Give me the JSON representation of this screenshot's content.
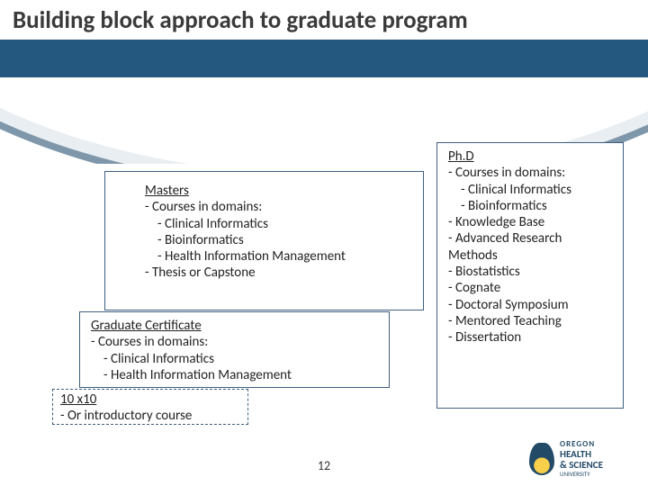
{
  "title": "Building block approach to graduate program",
  "colors": {
    "band": "#25587f",
    "arc_mid": "#e9eef2",
    "arc_outer": "#7f97aa",
    "box_border": "#3f5f7f",
    "text": "#3a3a3a"
  },
  "page_number": "12",
  "boxes": {
    "phd": {
      "title": "Ph.D",
      "lines": [
        "- Courses in domains:",
        "   - Clinical Informatics",
        "   - Bioinformatics",
        "- Knowledge Base",
        "- Advanced Research",
        "  Methods",
        "- Biostatistics",
        "- Cognate",
        "- Doctoral Symposium",
        "- Mentored Teaching",
        "- Dissertation"
      ]
    },
    "masters": {
      "title": "Masters",
      "lines": [
        "- Courses in domains:",
        "   - Clinical Informatics",
        "   - Bioinformatics",
        "   - Health Information Management",
        "- Thesis or Capstone"
      ]
    },
    "grad_cert": {
      "title": "Graduate Certificate",
      "lines": [
        "- Courses in domains:",
        "   - Clinical Informatics",
        "   - Health Information Management"
      ]
    },
    "tenbyten": {
      "title": "10 x10",
      "lines": [
        "- Or introductory course"
      ]
    }
  },
  "logo": {
    "line1": "OREGON",
    "line2": "HEALTH",
    "line3": "& SCIENCE",
    "line4": "UNIVERSITY"
  }
}
